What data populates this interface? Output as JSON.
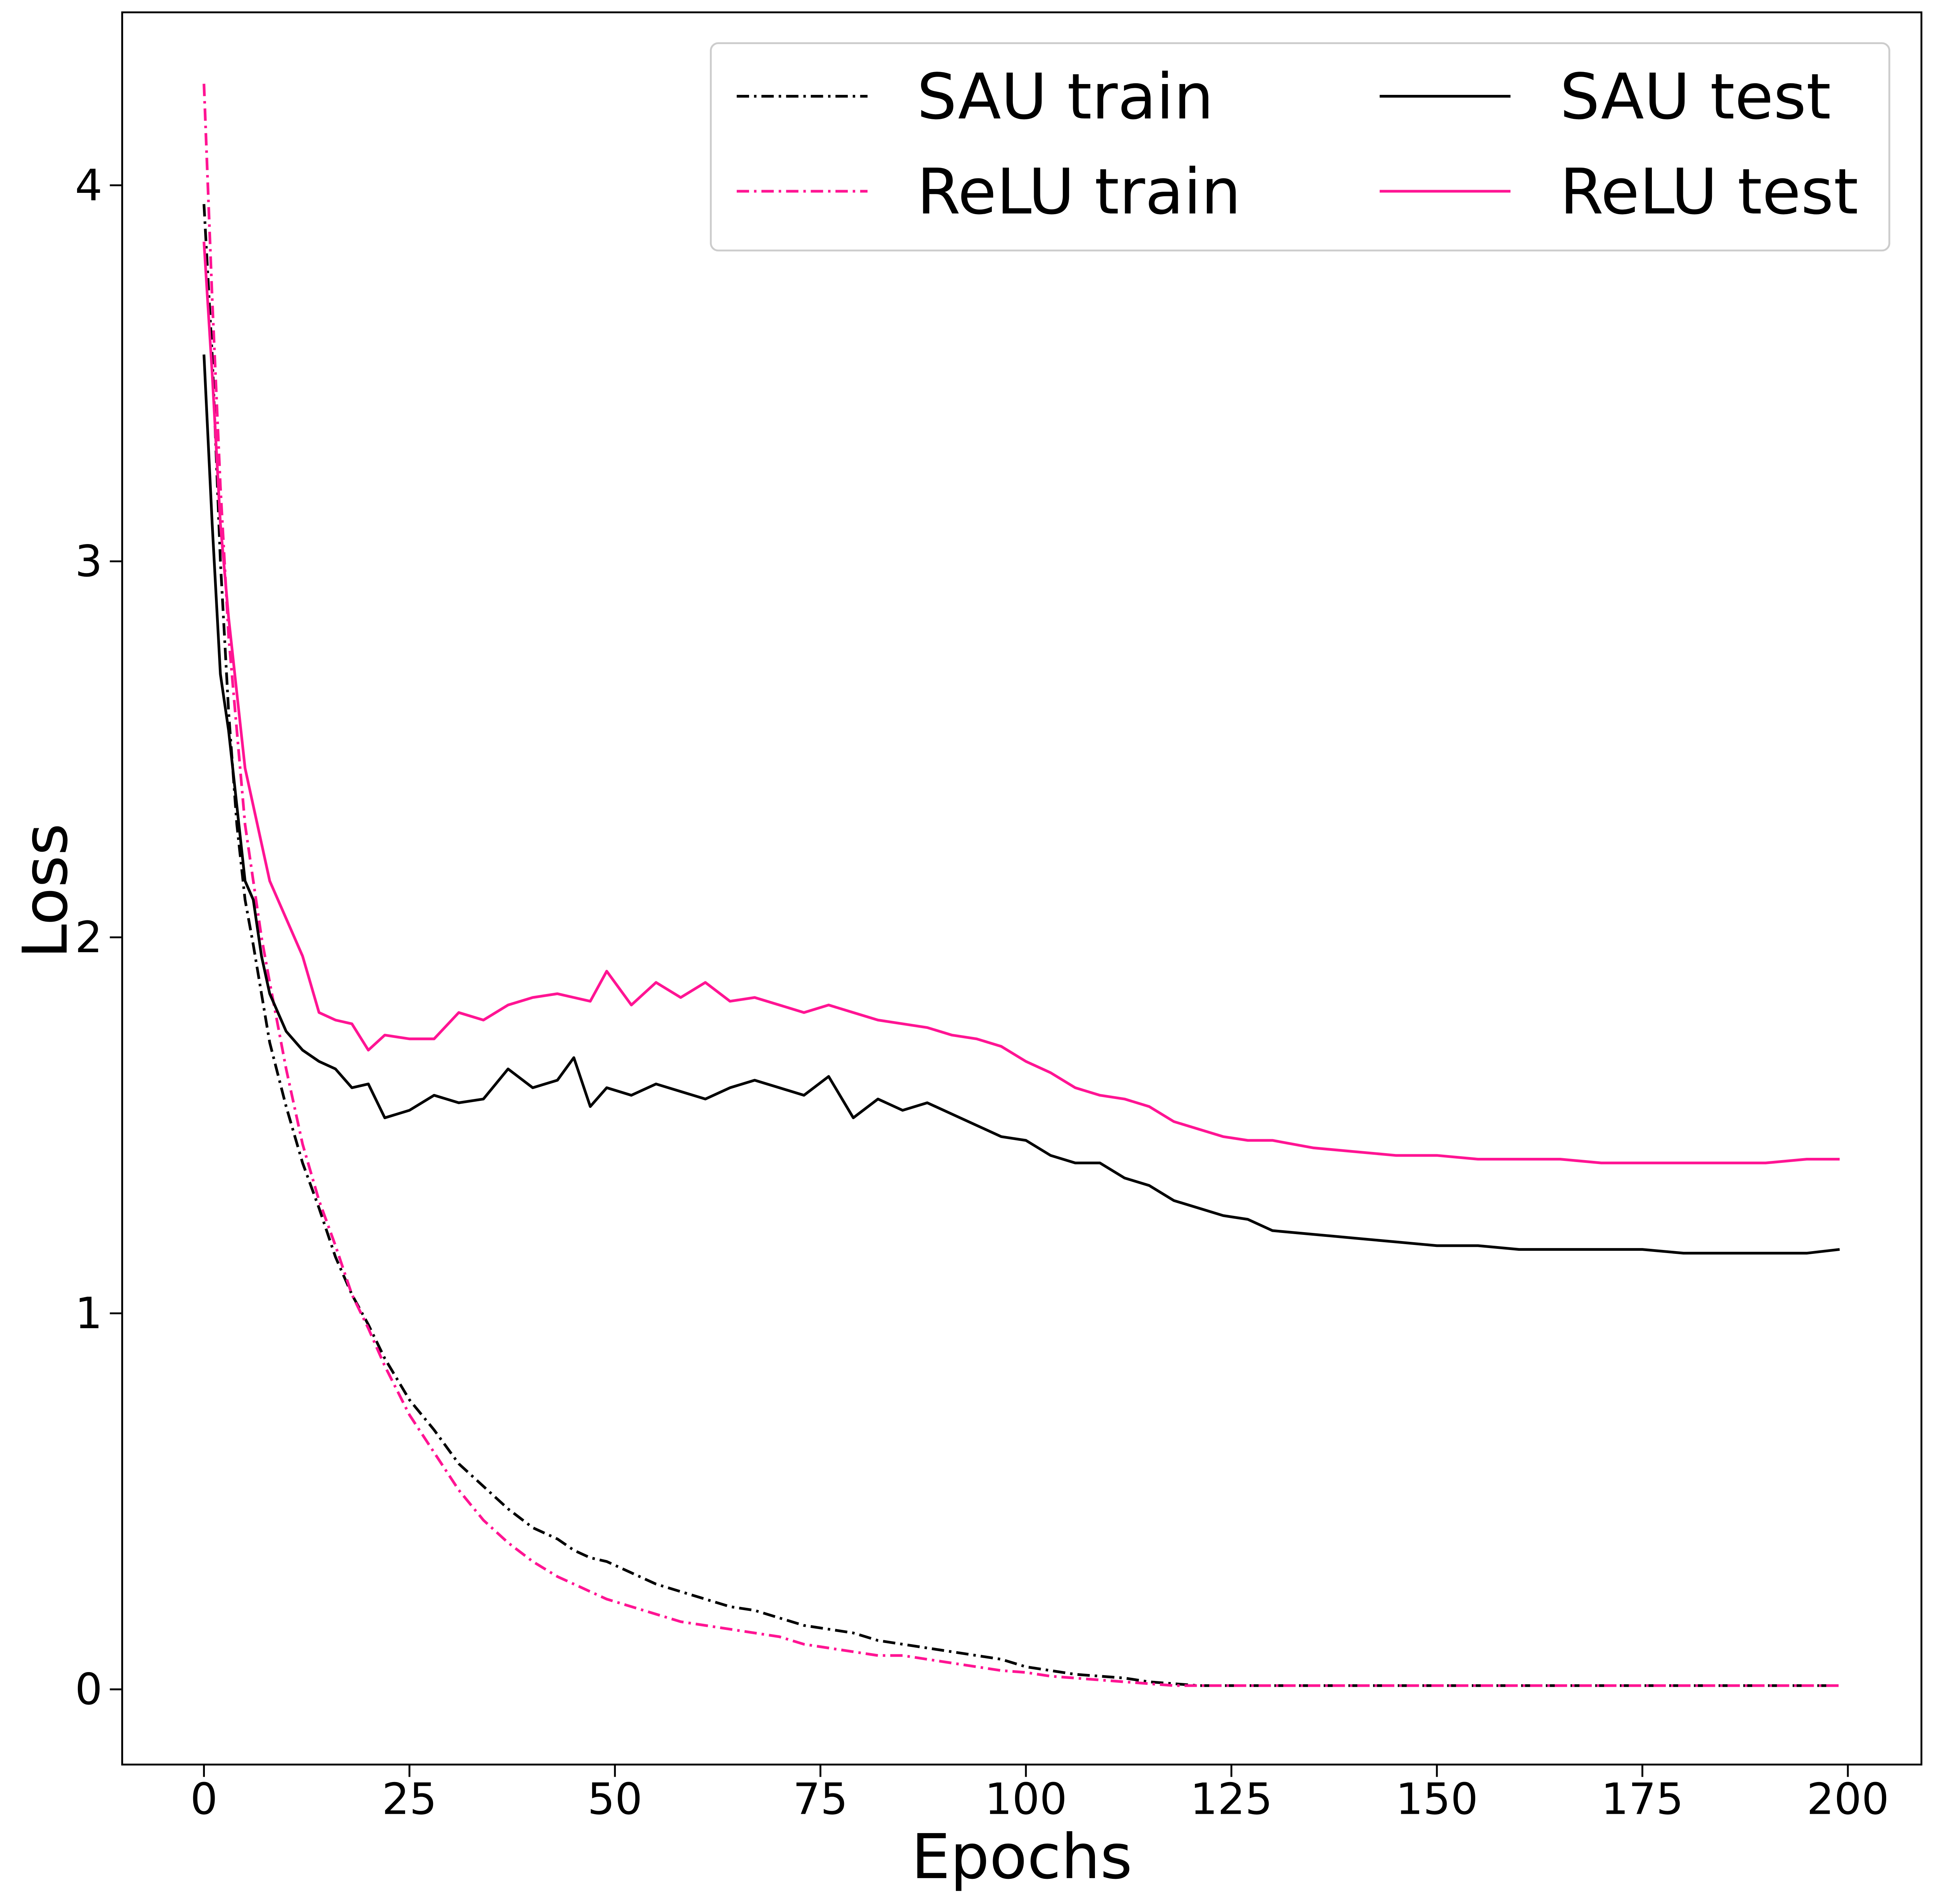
{
  "chart_data": {
    "type": "line",
    "xlabel": "Epochs",
    "ylabel": "Loss",
    "x": [
      0,
      1,
      2,
      3,
      4,
      5,
      6,
      7,
      8,
      10,
      12,
      14,
      16,
      18,
      20,
      22,
      25,
      28,
      31,
      34,
      37,
      40,
      43,
      45,
      47,
      49,
      52,
      55,
      58,
      61,
      64,
      67,
      70,
      73,
      76,
      79,
      82,
      85,
      88,
      91,
      94,
      97,
      100,
      103,
      106,
      109,
      112,
      115,
      118,
      121,
      124,
      127,
      130,
      135,
      140,
      145,
      150,
      155,
      160,
      165,
      170,
      175,
      180,
      185,
      190,
      195,
      199
    ],
    "series": [
      {
        "name": "SAU train",
        "color": "#000000",
        "linestyle": "dashdot",
        "values": [
          3.95,
          3.55,
          3.0,
          2.6,
          2.3,
          2.1,
          1.98,
          1.85,
          1.72,
          1.55,
          1.4,
          1.28,
          1.15,
          1.05,
          0.97,
          0.88,
          0.77,
          0.69,
          0.6,
          0.54,
          0.48,
          0.43,
          0.4,
          0.37,
          0.35,
          0.34,
          0.31,
          0.28,
          0.26,
          0.24,
          0.22,
          0.21,
          0.19,
          0.17,
          0.16,
          0.15,
          0.13,
          0.12,
          0.11,
          0.1,
          0.09,
          0.08,
          0.06,
          0.05,
          0.04,
          0.035,
          0.03,
          0.02,
          0.015,
          0.01,
          0.01,
          0.01,
          0.01,
          0.01,
          0.01,
          0.01,
          0.01,
          0.01,
          0.01,
          0.01,
          0.01,
          0.01,
          0.01,
          0.01,
          0.01,
          0.01,
          0.01
        ]
      },
      {
        "name": "ReLU train",
        "color": "#ff1493",
        "linestyle": "dashdot",
        "values": [
          4.27,
          3.7,
          3.2,
          2.8,
          2.55,
          2.3,
          2.15,
          2.0,
          1.88,
          1.65,
          1.45,
          1.3,
          1.18,
          1.05,
          0.96,
          0.86,
          0.73,
          0.63,
          0.53,
          0.45,
          0.39,
          0.34,
          0.3,
          0.28,
          0.26,
          0.24,
          0.22,
          0.2,
          0.18,
          0.17,
          0.16,
          0.15,
          0.14,
          0.12,
          0.11,
          0.1,
          0.09,
          0.09,
          0.08,
          0.07,
          0.06,
          0.05,
          0.045,
          0.035,
          0.03,
          0.025,
          0.02,
          0.015,
          0.01,
          0.01,
          0.01,
          0.01,
          0.01,
          0.01,
          0.01,
          0.01,
          0.01,
          0.01,
          0.01,
          0.01,
          0.01,
          0.01,
          0.01,
          0.01,
          0.01,
          0.01,
          0.01
        ]
      },
      {
        "name": "SAU test",
        "color": "#000000",
        "linestyle": "solid",
        "values": [
          3.55,
          3.1,
          2.7,
          2.55,
          2.35,
          2.15,
          2.1,
          1.95,
          1.85,
          1.75,
          1.7,
          1.67,
          1.65,
          1.6,
          1.61,
          1.52,
          1.54,
          1.58,
          1.56,
          1.57,
          1.65,
          1.6,
          1.62,
          1.68,
          1.55,
          1.6,
          1.58,
          1.61,
          1.59,
          1.57,
          1.6,
          1.62,
          1.6,
          1.58,
          1.63,
          1.52,
          1.57,
          1.54,
          1.56,
          1.53,
          1.5,
          1.47,
          1.46,
          1.42,
          1.4,
          1.4,
          1.36,
          1.34,
          1.3,
          1.28,
          1.26,
          1.25,
          1.22,
          1.21,
          1.2,
          1.19,
          1.18,
          1.18,
          1.17,
          1.17,
          1.17,
          1.17,
          1.16,
          1.16,
          1.16,
          1.16,
          1.17
        ]
      },
      {
        "name": "ReLU test",
        "color": "#ff1493",
        "linestyle": "solid",
        "values": [
          3.85,
          3.5,
          3.1,
          2.85,
          2.65,
          2.45,
          2.35,
          2.25,
          2.15,
          2.05,
          1.95,
          1.8,
          1.78,
          1.77,
          1.7,
          1.74,
          1.73,
          1.73,
          1.8,
          1.78,
          1.82,
          1.84,
          1.85,
          1.84,
          1.83,
          1.91,
          1.82,
          1.88,
          1.84,
          1.88,
          1.83,
          1.84,
          1.82,
          1.8,
          1.82,
          1.8,
          1.78,
          1.77,
          1.76,
          1.74,
          1.73,
          1.71,
          1.67,
          1.64,
          1.6,
          1.58,
          1.57,
          1.55,
          1.51,
          1.49,
          1.47,
          1.46,
          1.46,
          1.44,
          1.43,
          1.42,
          1.42,
          1.41,
          1.41,
          1.41,
          1.4,
          1.4,
          1.4,
          1.4,
          1.4,
          1.41,
          1.41
        ]
      }
    ],
    "xlim": [
      -9.95,
      208.95
    ],
    "ylim": [
      -0.2,
      4.46
    ],
    "xticks": [
      0,
      25,
      50,
      75,
      100,
      125,
      150,
      175,
      200
    ],
    "yticks": [
      0,
      1,
      2,
      3,
      4
    ],
    "legend": "upper right",
    "legend_columns": 2,
    "grid": false
  }
}
